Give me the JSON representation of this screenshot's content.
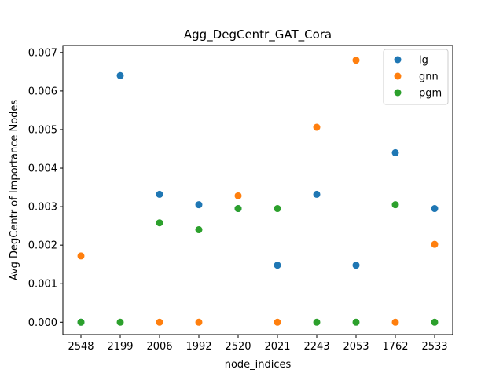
{
  "chart_data": {
    "type": "scatter",
    "title": "Agg_DegCentr_GAT_Cora",
    "xlabel": "node_indices",
    "ylabel": "Avg DegCentr of Importance Nodes",
    "categories": [
      "2548",
      "2199",
      "2006",
      "1992",
      "2520",
      "2021",
      "2243",
      "2053",
      "1762",
      "2533"
    ],
    "ylim": [
      -0.00032,
      0.00718
    ],
    "yticks": [
      0.0,
      0.001,
      0.002,
      0.003,
      0.004,
      0.005,
      0.006,
      0.007
    ],
    "ytick_labels": [
      "0.000",
      "0.001",
      "0.002",
      "0.003",
      "0.004",
      "0.005",
      "0.006",
      "0.007"
    ],
    "grid": false,
    "legend_position": "top-right",
    "series": [
      {
        "name": "ig",
        "color": "#1f77b4",
        "values": [
          0.0,
          0.0064,
          0.00332,
          0.00305,
          0.00295,
          0.00148,
          0.00332,
          0.00148,
          0.0044,
          0.00295
        ]
      },
      {
        "name": "gnn",
        "color": "#ff7f0e",
        "values": [
          0.00172,
          null,
          0.0,
          0.0,
          0.00328,
          0.0,
          0.00506,
          0.0068,
          0.0,
          0.00202
        ]
      },
      {
        "name": "pgm",
        "color": "#2ca02c",
        "values": [
          0.0,
          0.0,
          0.00258,
          0.0024,
          0.00295,
          0.00295,
          0.0,
          0.0,
          0.00305,
          0.0
        ]
      }
    ]
  }
}
